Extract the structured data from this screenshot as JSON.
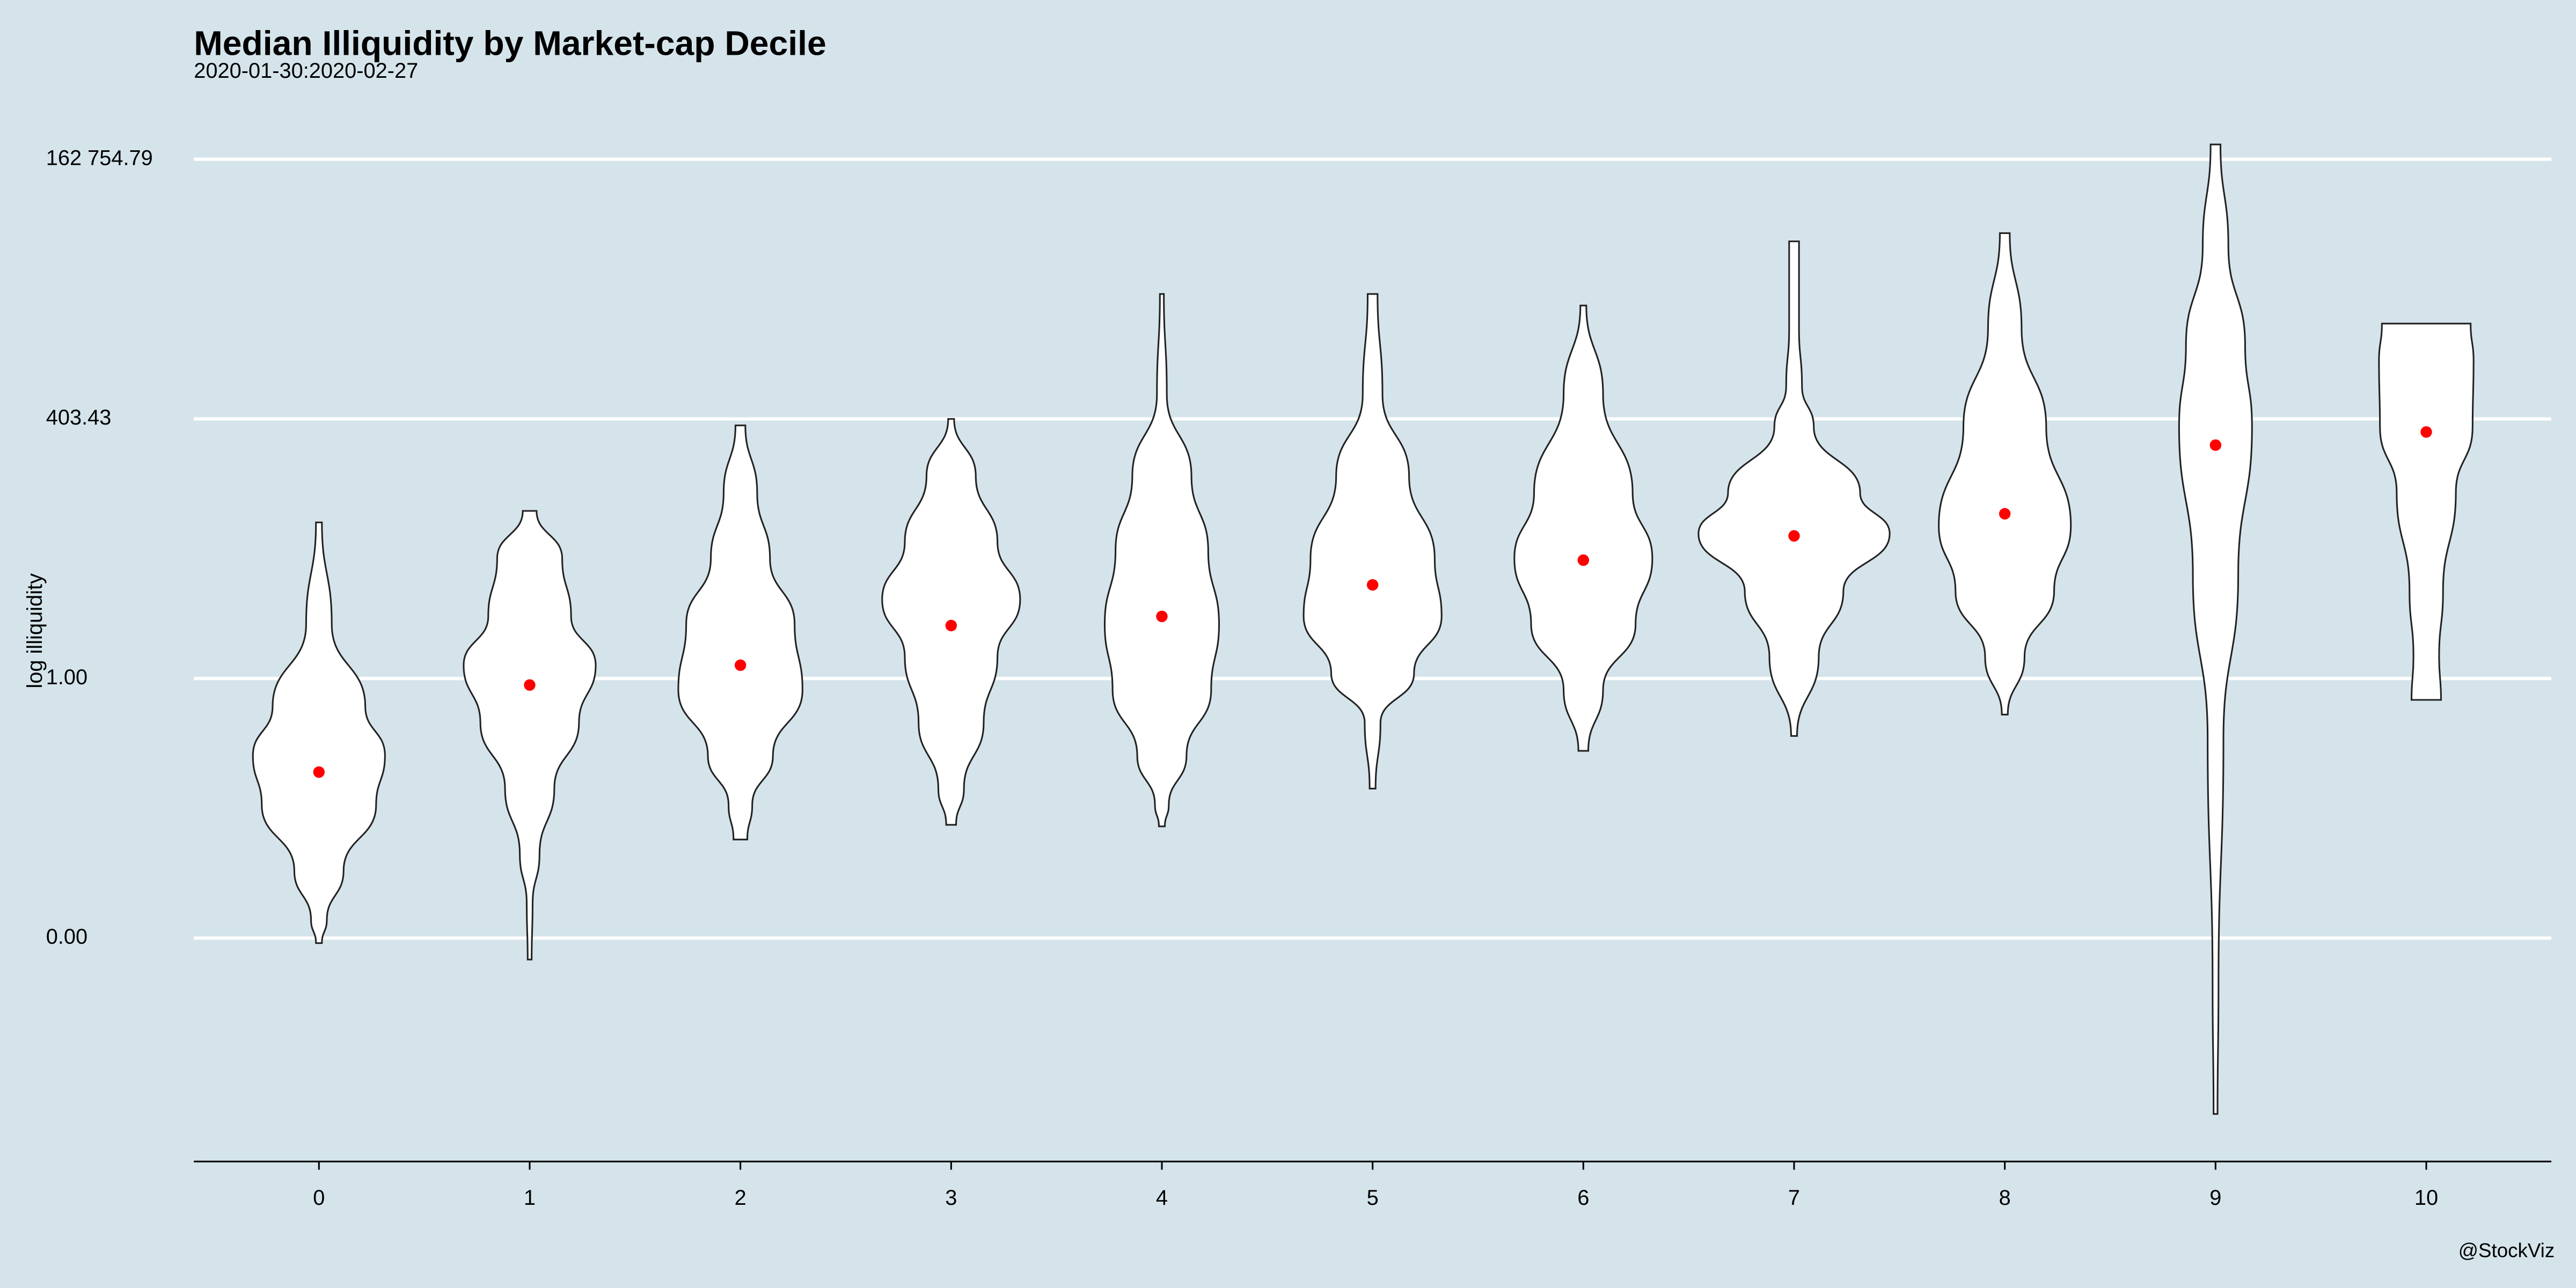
{
  "chart_data": {
    "type": "violin",
    "title": "Median Illiquidity by Market-cap Decile",
    "subtitle": "2020-01-30:2020-02-27",
    "y_label": "log illiquidity",
    "caption": "@StockViz",
    "log_scale": true,
    "grid": true,
    "color": "#ffffff",
    "median_color": "#ff0000",
    "categories": [
      "0",
      "1",
      "2",
      "3",
      "4",
      "5",
      "6",
      "7",
      "8",
      "9",
      "10"
    ],
    "ylim": [
      1.42e-05,
      334000
    ],
    "yticks": [
      {
        "value": 0.00248,
        "label": "0.00"
      },
      {
        "value": 1,
        "label": "1.00"
      },
      {
        "value": 403.43,
        "label": "403.43"
      },
      {
        "value": 162754.79,
        "label": "162 754.79"
      }
    ],
    "medians": [
      0.115,
      0.86,
      1.36,
      3.4,
      4.2,
      8.7,
      15.4,
      27,
      45,
      220,
      298
    ],
    "violins": [
      {
        "values": [
          36.9,
          3.5,
          0.524,
          0.168,
          0.0537,
          0.01176,
          0.00376,
          0.00221
        ],
        "density": [
          0.03,
          0.13,
          0.47,
          0.67,
          0.58,
          0.25,
          0.08,
          0.03
        ]
      },
      {
        "values": [
          48.1,
          16.0,
          4.23,
          1.355,
          0.359,
          0.0785,
          0.0172,
          0.0055,
          0.00151
        ],
        "density": [
          0.07,
          0.33,
          0.42,
          0.67,
          0.5,
          0.25,
          0.1,
          0.03,
          0.02
        ]
      },
      {
        "values": [
          347,
          73.1,
          16.0,
          3.5,
          0.767,
          0.168,
          0.0537,
          0.0242
        ],
        "density": [
          0.05,
          0.17,
          0.3,
          0.55,
          0.63,
          0.33,
          0.12,
          0.07
        ]
      },
      {
        "values": [
          403,
          107,
          23.4,
          6.19,
          1.64,
          0.359,
          0.0785,
          0.034
        ],
        "density": [
          0.03,
          0.25,
          0.47,
          0.7,
          0.47,
          0.33,
          0.13,
          0.05
        ]
      },
      {
        "values": [
          7230,
          713,
          107,
          19.3,
          3.5,
          0.767,
          0.168,
          0.0537,
          0.0328
        ],
        "density": [
          0.02,
          0.05,
          0.3,
          0.47,
          0.58,
          0.5,
          0.25,
          0.07,
          0.03
        ]
      },
      {
        "values": [
          7230,
          713,
          107,
          16.0,
          4.23,
          1.12,
          0.359,
          0.0785
        ],
        "density": [
          0.05,
          0.1,
          0.37,
          0.63,
          0.7,
          0.42,
          0.08,
          0.03
        ]
      },
      {
        "values": [
          5540,
          713,
          73.1,
          16.0,
          3.5,
          0.767,
          0.188
        ],
        "density": [
          0.03,
          0.2,
          0.5,
          0.7,
          0.53,
          0.2,
          0.05
        ]
      },
      {
        "values": [
          24400,
          3260,
          862,
          334,
          73.1,
          28.3,
          7.48,
          1.64,
          0.265
        ],
        "density": [
          0.05,
          0.05,
          0.08,
          0.2,
          0.67,
          0.97,
          0.5,
          0.25,
          0.03
        ]
      },
      {
        "values": [
          29500,
          3260,
          334,
          34.2,
          7.48,
          1.64,
          0.434
        ],
        "density": [
          0.05,
          0.17,
          0.42,
          0.67,
          0.5,
          0.2,
          0.03
        ]
      },
      {
        "values": [
          229000,
          21800,
          2230,
          334,
          10.9,
          0.245,
          0.000824,
          4.26e-05
        ],
        "density": [
          0.05,
          0.13,
          0.3,
          0.37,
          0.23,
          0.08,
          0.03,
          0.02
        ]
      },
      {
        "values": [
          3650,
          1525,
          334,
          73.1,
          7.48,
          1.64,
          0.61
        ],
        "density": [
          0.45,
          0.48,
          0.47,
          0.3,
          0.17,
          0.13,
          0.15
        ]
      }
    ]
  }
}
